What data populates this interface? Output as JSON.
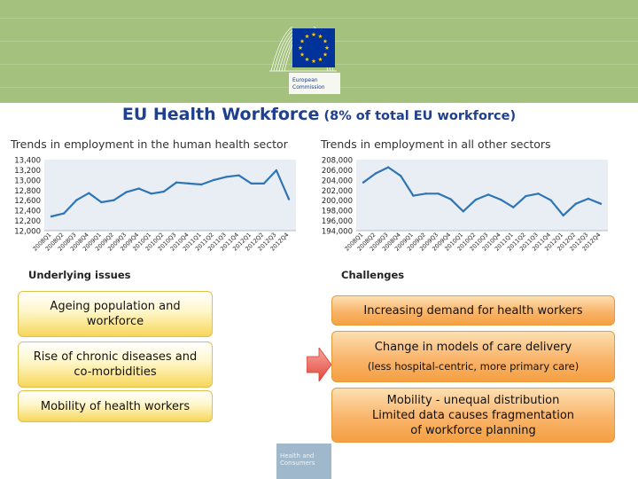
{
  "header": {
    "logo_line1": "European",
    "logo_line2": "Commission",
    "title_main": "EU Health Workforce",
    "title_sub": "(8% of total EU workforce)",
    "footer_line1": "Health and",
    "footer_line2": "Consumers",
    "colors": {
      "band": "#a4c17e",
      "title": "#1f3f8f",
      "eu_blue": "#003399",
      "eu_star": "#ffcc00"
    }
  },
  "charts": {
    "left_subtitle": "Trends in employment in the human health sector",
    "right_subtitle": "Trends in employment in all other sectors"
  },
  "chart_data": [
    {
      "type": "line",
      "title": "Trends in employment in the human health sector",
      "categories": [
        "2008Q1",
        "2008Q2",
        "2008Q3",
        "2008Q4",
        "2009Q1",
        "2009Q2",
        "2009Q3",
        "2009Q4",
        "2010Q1",
        "2010Q2",
        "2010Q3",
        "2010Q4",
        "2011Q1",
        "2011Q2",
        "2011Q3",
        "2011Q4",
        "2012Q1",
        "2012Q2",
        "2012Q3",
        "2012Q4"
      ],
      "values": [
        12280,
        12340,
        12600,
        12740,
        12560,
        12600,
        12760,
        12830,
        12730,
        12770,
        12950,
        12930,
        12910,
        13000,
        13060,
        13090,
        12930,
        12930,
        13190,
        12620
      ],
      "ylim": [
        12000,
        13400
      ],
      "yticks": [
        "13,400",
        "13,200",
        "13,000",
        "12,800",
        "12,600",
        "12,400",
        "12,200",
        "12,000"
      ],
      "grid": false,
      "color": "#2e75b6"
    },
    {
      "type": "line",
      "title": "Trends in employment in all other sectors",
      "categories": [
        "2008Q1",
        "2008Q2",
        "2008Q3",
        "2008Q4",
        "2009Q1",
        "2009Q2",
        "2009Q3",
        "2009Q4",
        "2010Q1",
        "2010Q2",
        "2010Q3",
        "2010Q4",
        "2011Q1",
        "2011Q2",
        "2011Q3",
        "2011Q4",
        "2012Q1",
        "2012Q2",
        "2012Q3",
        "2012Q4"
      ],
      "values": [
        203500,
        205300,
        206500,
        204800,
        200900,
        201300,
        201300,
        200200,
        197800,
        200100,
        201100,
        200100,
        198600,
        200800,
        201300,
        200000,
        197000,
        199300,
        200300,
        199300
      ],
      "ylim": [
        194000,
        208000
      ],
      "yticks": [
        "208,000",
        "206,000",
        "204,000",
        "202,000",
        "200,000",
        "198,000",
        "196,000",
        "194,000"
      ],
      "grid": false,
      "color": "#2e75b6"
    }
  ],
  "issues": {
    "label": "Underlying issues",
    "items": [
      "Ageing population and workforce",
      "Rise of chronic diseases and co-morbidities",
      "Mobility of health workers"
    ]
  },
  "challenges": {
    "label": "Challenges",
    "item1": "Increasing demand for health workers",
    "item2_main": "Change in models of care delivery",
    "item2_sub": "(less hospital-centric, more primary care)",
    "item3_line1": "Mobility - unequal distribution",
    "item3_line2": "Limited data causes fragmentation of workforce planning"
  }
}
